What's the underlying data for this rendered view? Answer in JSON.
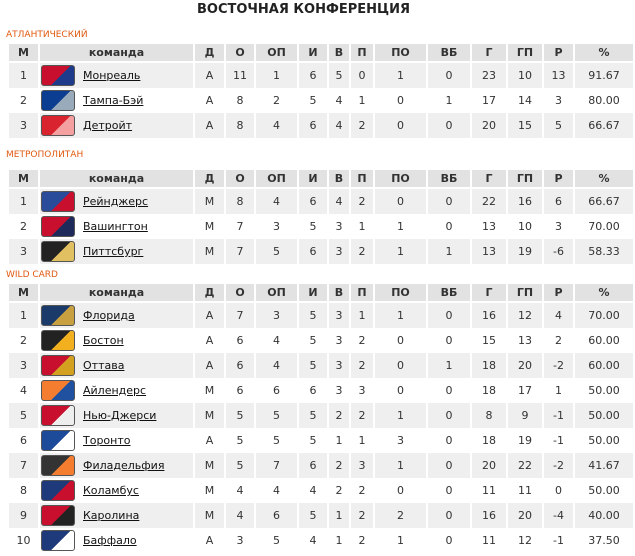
{
  "title": "ВОСТОЧНАЯ КОНФЕРЕНЦИЯ",
  "columns": [
    "М",
    "команда",
    "Д",
    "О",
    "ОП",
    "И",
    "В",
    "П",
    "ПО",
    "ВБ",
    "Г",
    "ГП",
    "Р",
    "%"
  ],
  "sections": [
    {
      "name": "АТЛАНТИЧЕСКИЙ",
      "rows": [
        [
          "1",
          "Монреаль",
          "А",
          "11",
          "1",
          "6",
          "5",
          "0",
          "1",
          "0",
          "23",
          "10",
          "13",
          "91.67",
          "#c8102e",
          "#1e3a8a"
        ],
        [
          "2",
          "Тампа-Бэй",
          "А",
          "8",
          "2",
          "5",
          "4",
          "1",
          "0",
          "1",
          "17",
          "14",
          "3",
          "80.00",
          "#0b3d91",
          "#9ab"
        ],
        [
          "3",
          "Детройт",
          "А",
          "8",
          "4",
          "6",
          "4",
          "2",
          "0",
          "0",
          "20",
          "15",
          "5",
          "66.67",
          "#d9232e",
          "#f4a0a0"
        ]
      ]
    },
    {
      "name": "МЕТРОПОЛИТАН",
      "rows": [
        [
          "1",
          "Рейнджерс",
          "М",
          "8",
          "4",
          "6",
          "4",
          "2",
          "0",
          "0",
          "22",
          "16",
          "6",
          "66.67",
          "#2a4b9a",
          "#c8102e"
        ],
        [
          "2",
          "Вашингтон",
          "М",
          "7",
          "3",
          "5",
          "3",
          "1",
          "1",
          "0",
          "13",
          "10",
          "3",
          "70.00",
          "#c8102e",
          "#1e2a5a"
        ],
        [
          "3",
          "Питтсбург",
          "М",
          "7",
          "5",
          "6",
          "3",
          "2",
          "1",
          "1",
          "13",
          "19",
          "-6",
          "58.33",
          "#222",
          "#e0c060"
        ]
      ]
    },
    {
      "name": "WILD CARD",
      "rows": [
        [
          "1",
          "Флорида",
          "А",
          "7",
          "3",
          "5",
          "3",
          "1",
          "1",
          "0",
          "16",
          "12",
          "4",
          "70.00",
          "#1a3a6a",
          "#c8a040"
        ],
        [
          "2",
          "Бостон",
          "А",
          "6",
          "4",
          "5",
          "3",
          "2",
          "0",
          "0",
          "15",
          "13",
          "2",
          "60.00",
          "#222",
          "#f2b01e"
        ],
        [
          "3",
          "Оттава",
          "А",
          "6",
          "4",
          "5",
          "3",
          "2",
          "0",
          "1",
          "18",
          "20",
          "-2",
          "60.00",
          "#c8102e",
          "#d4a020"
        ],
        [
          "4",
          "Айлендерс",
          "М",
          "6",
          "6",
          "6",
          "3",
          "3",
          "0",
          "0",
          "18",
          "17",
          "1",
          "50.00",
          "#f47d30",
          "#2050a0"
        ],
        [
          "5",
          "Нью-Джерси",
          "М",
          "5",
          "5",
          "5",
          "2",
          "2",
          "1",
          "0",
          "8",
          "9",
          "-1",
          "50.00",
          "#c8102e",
          "#eee"
        ],
        [
          "6",
          "Торонто",
          "А",
          "5",
          "5",
          "5",
          "1",
          "1",
          "3",
          "0",
          "18",
          "19",
          "-1",
          "50.00",
          "#1e4a9a",
          "#fff"
        ],
        [
          "7",
          "Филадельфия",
          "М",
          "5",
          "7",
          "6",
          "2",
          "3",
          "1",
          "0",
          "20",
          "22",
          "-2",
          "41.67",
          "#333",
          "#f47d30"
        ],
        [
          "8",
          "Коламбус",
          "М",
          "4",
          "4",
          "4",
          "2",
          "2",
          "0",
          "0",
          "11",
          "11",
          "0",
          "50.00",
          "#1e3a7a",
          "#c8102e"
        ],
        [
          "9",
          "Каролина",
          "М",
          "4",
          "6",
          "5",
          "1",
          "2",
          "2",
          "0",
          "16",
          "20",
          "-4",
          "40.00",
          "#c8102e",
          "#222"
        ],
        [
          "10",
          "Баффало",
          "А",
          "3",
          "5",
          "4",
          "1",
          "2",
          "1",
          "0",
          "11",
          "12",
          "-1",
          "37.50",
          "#1e3a7a",
          "#fff"
        ]
      ]
    }
  ]
}
